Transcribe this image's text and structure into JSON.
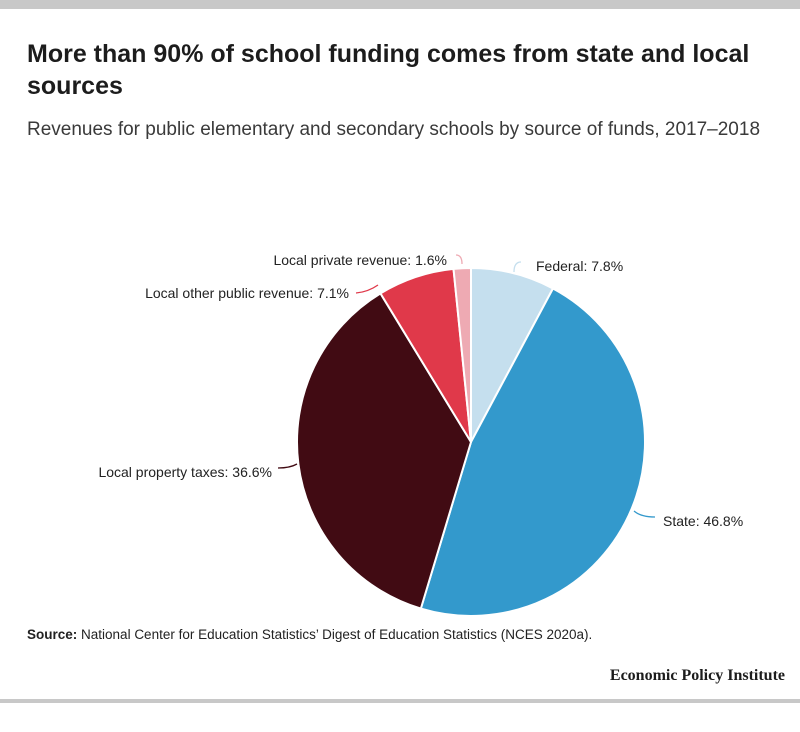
{
  "header": {
    "title": "More than 90% of school funding comes from state and local sources",
    "subtitle": "Revenues for public elementary and secondary schools by source of funds, 2017–2018"
  },
  "chart_data": {
    "type": "pie",
    "title": "More than 90% of school funding comes from state and local sources",
    "subtitle": "Revenues for public elementary and secondary schools by source of funds, 2017–2018",
    "unit": "%",
    "slices": [
      {
        "name": "Federal",
        "value": 7.8,
        "label": "Federal: 7.8%",
        "color": "#c5dfee"
      },
      {
        "name": "State",
        "value": 46.8,
        "label": "State: 46.8%",
        "color": "#3399cc"
      },
      {
        "name": "Local property taxes",
        "value": 36.6,
        "label": "Local property taxes: 36.6%",
        "color": "#410b13"
      },
      {
        "name": "Local other public revenue",
        "value": 7.1,
        "label": "Local other public revenue: 7.1%",
        "color": "#e0394a"
      },
      {
        "name": "Local private revenue",
        "value": 1.6,
        "label": "Local private revenue: 1.6%",
        "color": "#eeaab3"
      }
    ]
  },
  "footer": {
    "source_label": "Source:",
    "source_text": "National Center for Education Statistics’ Digest of Education Statistics (NCES 2020a).",
    "brand": "Economic Policy Institute"
  }
}
